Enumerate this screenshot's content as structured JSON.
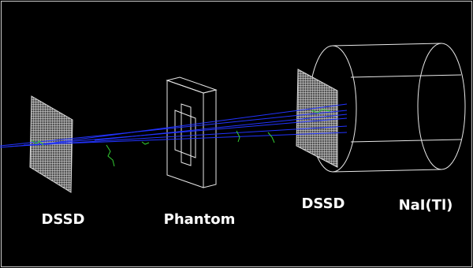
{
  "labels": [
    "DSSD",
    "Phantom",
    "DSSD",
    "NaI(Tl)"
  ]
}
